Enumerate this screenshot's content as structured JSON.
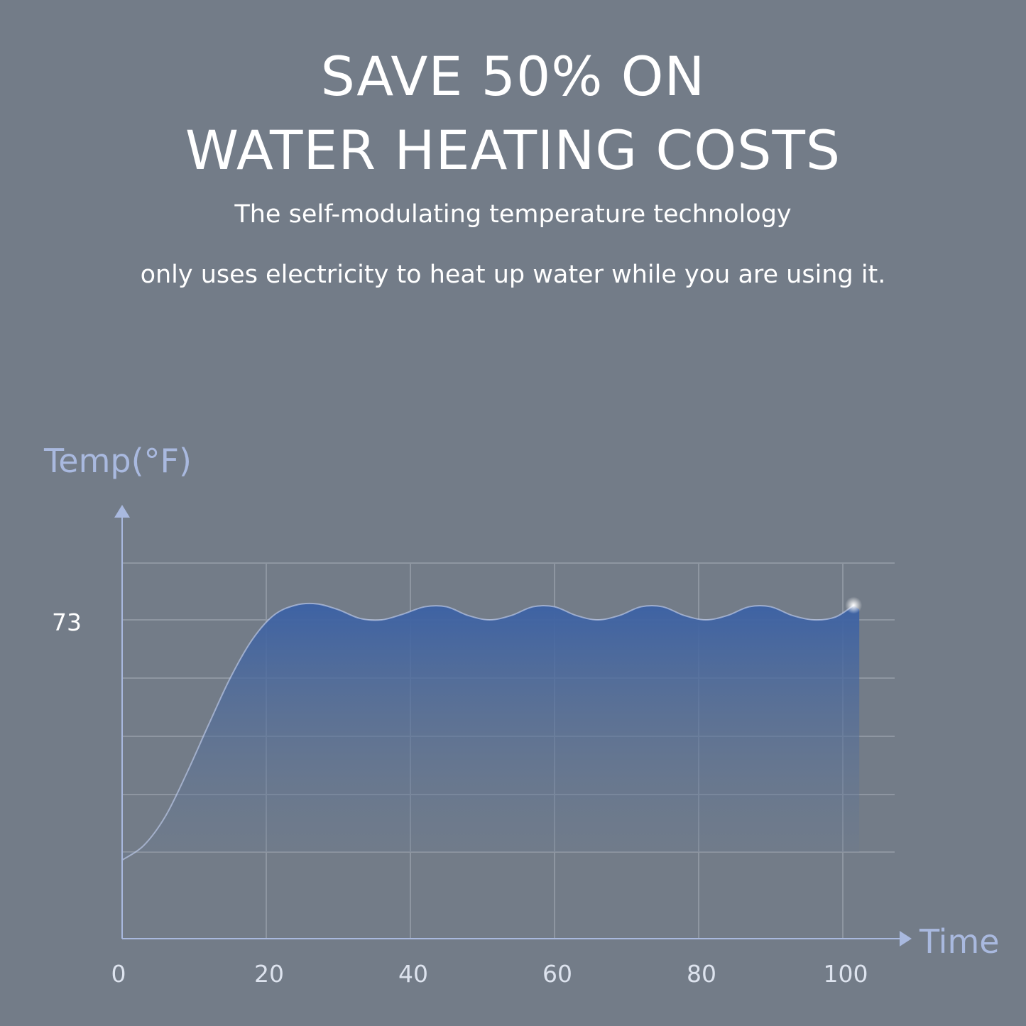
{
  "headline": {
    "line1": "SAVE 50% ON",
    "line2": "WATER HEATING COSTS"
  },
  "subtitle": {
    "line1": "The self-modulating temperature technology",
    "line2": "only uses electricity to heat up water while you are using it."
  },
  "colors": {
    "background": "#737c88",
    "axis": "#a9b9df",
    "grid": "#8e96a1",
    "fill_top": "#3d62a4",
    "fill_bottom": "#6a7a90",
    "curve": "#b9c6e6",
    "text": "#ffffff"
  },
  "chart_data": {
    "type": "area",
    "ylabel": "Temp(°F)",
    "xlabel": "Time",
    "x_ticks": [
      "0",
      "20",
      "40",
      "60",
      "80",
      "100"
    ],
    "y_ticks": [
      "73"
    ],
    "xlim": [
      0,
      110
    ],
    "grid": true,
    "series": [
      {
        "x": [
          0,
          3,
          6,
          9,
          12,
          15,
          18,
          21,
          24,
          27,
          30,
          33,
          36,
          39,
          42,
          45,
          48,
          51,
          54,
          57,
          60,
          63,
          66,
          69,
          72,
          75,
          78,
          81,
          84,
          87,
          90,
          93,
          96,
          99,
          101.5
        ],
        "y": [
          56.5,
          57.5,
          59.5,
          62.5,
          65.8,
          69.0,
          71.6,
          73.3,
          74.0,
          74.1,
          73.7,
          73.1,
          73.0,
          73.4,
          73.9,
          73.9,
          73.3,
          73.0,
          73.3,
          73.9,
          73.9,
          73.3,
          73.0,
          73.3,
          73.9,
          73.9,
          73.3,
          73.0,
          73.3,
          73.9,
          73.9,
          73.3,
          73.0,
          73.2,
          74.0
        ]
      }
    ]
  }
}
